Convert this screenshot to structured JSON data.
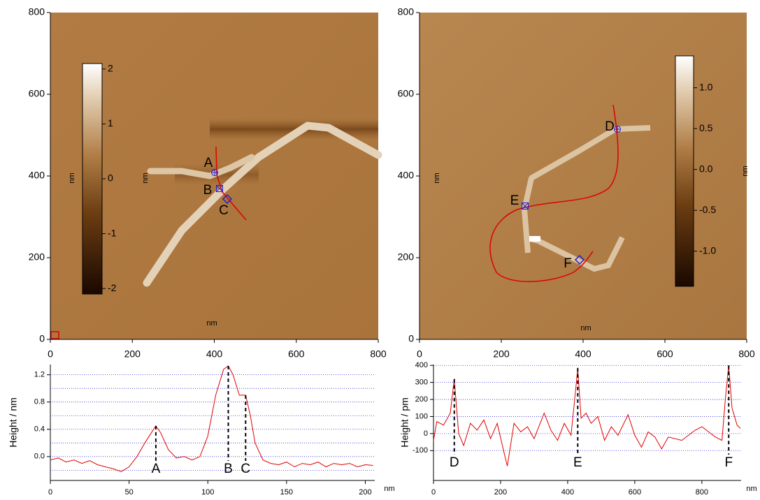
{
  "chart_data": [
    {
      "type": "image",
      "xlim": [
        0,
        800
      ],
      "ylim": [
        0,
        800
      ],
      "xticks": [
        0,
        200,
        400,
        600,
        800
      ],
      "yticks": [
        0,
        200,
        400,
        600,
        800
      ],
      "x_label": "nm",
      "y_label": "nm",
      "colorbar": {
        "label": "nm",
        "lim": [
          -2.1,
          2.1
        ],
        "ticks": [
          -2,
          -1,
          0,
          1,
          2
        ]
      },
      "markers": [
        "A",
        "B",
        "C"
      ]
    },
    {
      "type": "image",
      "xlim": [
        0,
        800
      ],
      "ylim": [
        0,
        800
      ],
      "xticks": [
        0,
        200,
        400,
        600,
        800
      ],
      "yticks": [
        0,
        200,
        400,
        600,
        800
      ],
      "x_label": "nm",
      "y_label": "nm",
      "colorbar": {
        "label": "nm",
        "lim": [
          -1.43,
          1.39
        ],
        "ticks": [
          {
            "value": -1,
            "label": "-1.0"
          },
          -0.5,
          {
            "value": 0,
            "label": "0.0"
          },
          0.5,
          {
            "value": 1,
            "label": "1.0"
          }
        ]
      },
      "markers": [
        "D",
        "E",
        "F"
      ]
    },
    {
      "type": "line",
      "y_label": "Height / nm",
      "x_label": "nm",
      "color": "#e00000",
      "xlim": [
        0,
        206
      ],
      "ylim": [
        -0.35,
        1.35
      ],
      "xticks": [
        0,
        50,
        100,
        150,
        200
      ],
      "yticks": [
        {
          "value": 0,
          "label": "0.0"
        },
        0.4,
        0.8,
        1.2
      ],
      "ygrid": [
        -0.2,
        0,
        0.2,
        0.4,
        0.6,
        0.8,
        1.0,
        1.2
      ],
      "x": [
        0,
        5,
        10,
        15,
        20,
        25,
        30,
        35,
        40,
        45,
        50,
        55,
        60,
        65,
        67,
        70,
        75,
        80,
        85,
        90,
        95,
        100,
        105,
        110,
        113,
        116,
        120,
        124,
        127,
        130,
        135,
        140,
        145,
        150,
        155,
        160,
        165,
        170,
        175,
        180,
        185,
        190,
        195,
        200,
        205
      ],
      "values": [
        -0.05,
        -0.02,
        -0.08,
        -0.05,
        -0.1,
        -0.06,
        -0.12,
        -0.15,
        -0.18,
        -0.22,
        -0.15,
        0.0,
        0.2,
        0.38,
        0.45,
        0.35,
        0.1,
        -0.02,
        0.0,
        -0.05,
        0.0,
        0.3,
        0.9,
        1.28,
        1.33,
        1.2,
        0.9,
        0.9,
        0.6,
        0.2,
        -0.05,
        -0.1,
        -0.12,
        -0.08,
        -0.15,
        -0.1,
        -0.12,
        -0.08,
        -0.15,
        -0.1,
        -0.12,
        -0.1,
        -0.15,
        -0.12,
        -0.13
      ],
      "markers": [
        {
          "label": "A",
          "x": 67,
          "y": 0.45
        },
        {
          "label": "B",
          "x": 113,
          "y": 1.33
        },
        {
          "label": "C",
          "x": 124,
          "y": 0.9
        }
      ]
    },
    {
      "type": "line",
      "y_label": "Height / pm",
      "x_label": "nm",
      "color": "#e00000",
      "xlim": [
        0,
        917
      ],
      "ylim": [
        -275,
        405
      ],
      "xticks": [
        0,
        200,
        400,
        600,
        800
      ],
      "yticks": [
        -100,
        0,
        100,
        200,
        300,
        400
      ],
      "ygrid": [
        -100,
        0,
        100,
        200,
        300,
        400
      ],
      "x": [
        0,
        10,
        30,
        50,
        62,
        75,
        90,
        110,
        130,
        150,
        170,
        190,
        210,
        220,
        240,
        260,
        280,
        300,
        330,
        350,
        370,
        390,
        410,
        425,
        430,
        440,
        455,
        470,
        490,
        510,
        530,
        550,
        580,
        600,
        620,
        640,
        660,
        680,
        700,
        740,
        780,
        800,
        820,
        840,
        860,
        870,
        880,
        890,
        905,
        915
      ],
      "values": [
        -40,
        70,
        50,
        120,
        320,
        0,
        -70,
        60,
        20,
        80,
        -30,
        60,
        -110,
        -190,
        60,
        10,
        40,
        -30,
        120,
        20,
        -40,
        60,
        -10,
        280,
        385,
        90,
        120,
        60,
        100,
        -40,
        40,
        -10,
        110,
        -10,
        -80,
        10,
        -20,
        -90,
        -20,
        -40,
        20,
        40,
        10,
        -20,
        -40,
        200,
        400,
        150,
        50,
        30
      ],
      "markers": [
        {
          "label": "D",
          "x": 62,
          "y": 320
        },
        {
          "label": "E",
          "x": 430,
          "y": 385
        },
        {
          "label": "F",
          "x": 880,
          "y": 400
        }
      ]
    }
  ]
}
